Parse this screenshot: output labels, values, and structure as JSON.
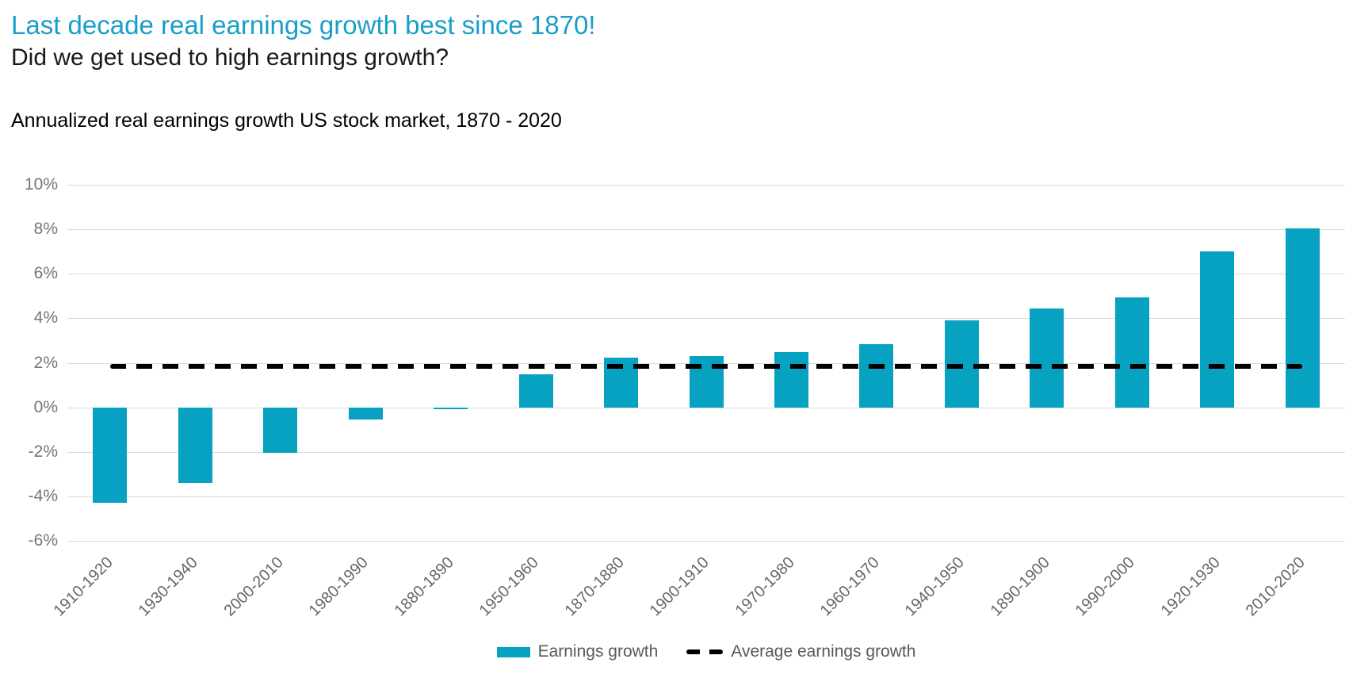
{
  "header": {
    "title": "Last decade real earnings growth best since 1870!",
    "subtitle": "Did we get used to high earnings growth?",
    "chart_label": "Annualized real earnings growth US stock market, 1870 - 2020"
  },
  "chart_data": {
    "type": "bar",
    "title": "Annualized real earnings growth US stock market, 1870 - 2020",
    "categories": [
      "1910-1920",
      "1930-1940",
      "2000-2010",
      "1980-1990",
      "1880-1890",
      "1950-1960",
      "1870-1880",
      "1900-1910",
      "1970-1980",
      "1960-1970",
      "1940-1950",
      "1890-1900",
      "1990-2000",
      "1920-1930",
      "2010-2020"
    ],
    "series": [
      {
        "name": "Earnings growth",
        "type": "bar",
        "values": [
          -4.3,
          -3.4,
          -2.05,
          -0.55,
          -0.1,
          1.5,
          2.25,
          2.3,
          2.5,
          2.85,
          3.9,
          4.45,
          4.95,
          7.0,
          8.05
        ]
      },
      {
        "name": "Average earnings growth",
        "type": "dashed-line",
        "value": 1.85
      }
    ],
    "xlabel": "",
    "ylabel": "",
    "ylim": [
      -6,
      10
    ],
    "yticks": [
      10,
      8,
      6,
      4,
      2,
      0,
      -2,
      -4,
      -6
    ],
    "ytick_format": "percent",
    "grid": "horizontal",
    "legend_position": "bottom",
    "colors": {
      "bar": "#07a1c1",
      "average_line": "#000000",
      "title": "#189ec9",
      "gridline": "#d9d9d9",
      "axis_text": "#757575"
    }
  },
  "legend": {
    "items": [
      {
        "label": "Earnings growth",
        "swatch": "bar"
      },
      {
        "label": "Average earnings growth",
        "swatch": "dashed-line"
      }
    ]
  }
}
